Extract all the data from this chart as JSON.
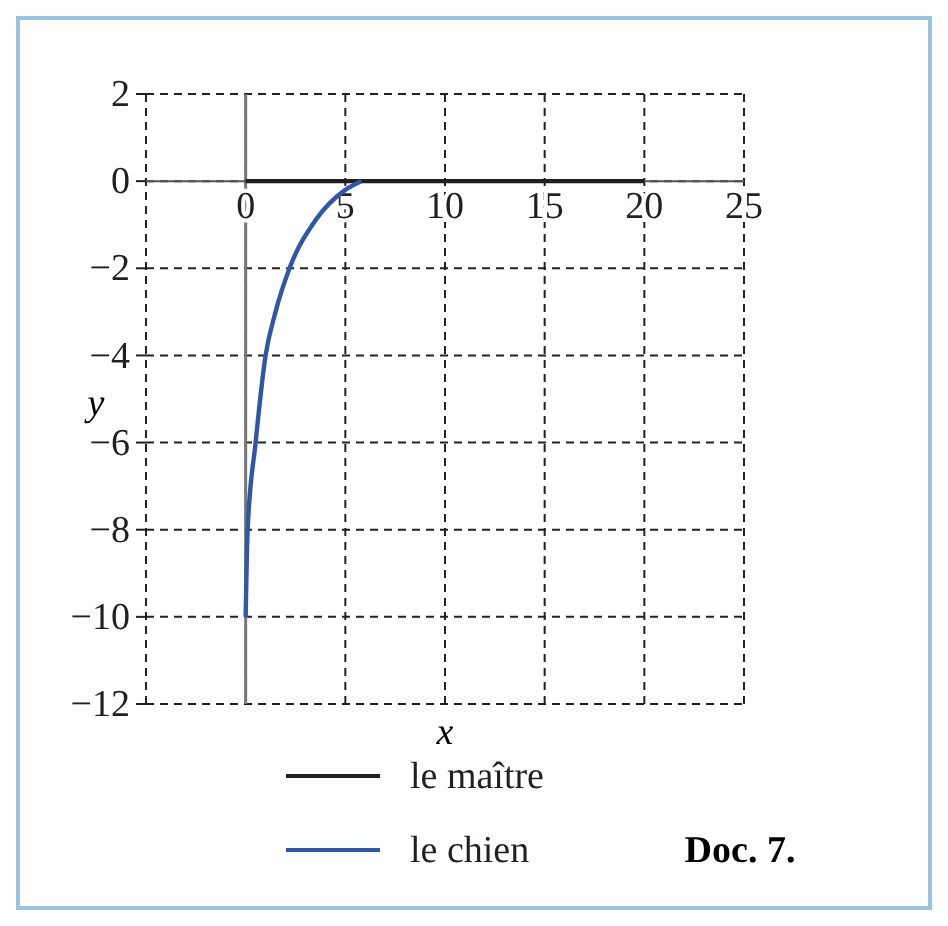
{
  "chart_data": {
    "type": "line",
    "xlabel": "x",
    "ylabel": "y",
    "annotations": [
      "Doc. 7."
    ],
    "xlim": [
      -5,
      25
    ],
    "ylim": [
      -12,
      2
    ],
    "xticks": [
      0,
      5,
      10,
      15,
      20,
      25
    ],
    "yticks": [
      2,
      0,
      -2,
      -4,
      -6,
      -8,
      -10,
      -12
    ],
    "grid": true,
    "legend": "bottom",
    "line_style": "solid",
    "series": [
      {
        "name": "le maître",
        "color": "#231f20",
        "x": [
          0,
          20
        ],
        "values": [
          0,
          0
        ]
      },
      {
        "name": "le chien",
        "color": "#2e57a7",
        "x": [
          0,
          0.1,
          0.5,
          1,
          1.5,
          2.2,
          3.5,
          5,
          5.8
        ],
        "values": [
          -10,
          -8,
          -6,
          -4,
          -3,
          -2,
          -0.9,
          -0.2,
          0
        ]
      }
    ]
  }
}
